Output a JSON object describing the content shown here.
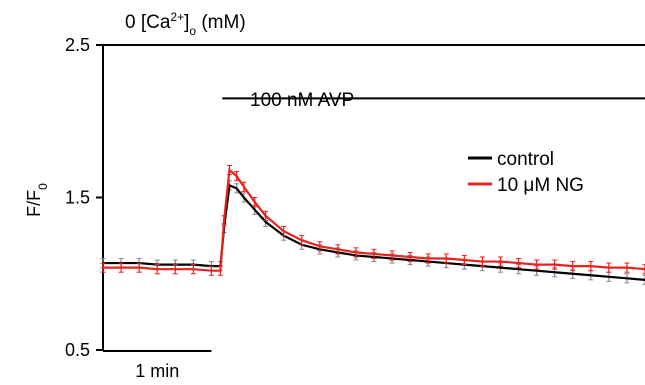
{
  "chart_data": {
    "type": "line",
    "title": "",
    "xlabel": "",
    "ylabel": {
      "main": "F/F",
      "sub": "0"
    },
    "ylim": [
      0.5,
      2.5
    ],
    "xlim": [
      0,
      15
    ],
    "y_ticks": [
      "0.5",
      "1.5",
      "2.5"
    ],
    "x_scalebar": {
      "label": "1 min",
      "length": 3.0
    },
    "grid": false,
    "legend_position": "top-right",
    "annotations": [
      {
        "id": "calcium",
        "prefix": "0 [Ca",
        "sup": "2+",
        "close": "]",
        "sub": "o",
        "suffix": " (mM)",
        "x_start": 0.0,
        "x_end": 15.0,
        "bar_y": 2.5
      },
      {
        "id": "avp",
        "text": "100 nM AVP",
        "x_start": 3.3,
        "x_end": 15.0,
        "bar_y": 2.15
      }
    ],
    "series": [
      {
        "name": "control",
        "color": "#000000",
        "error_color": "#888888",
        "x": [
          0,
          0.5,
          1.0,
          1.5,
          2.0,
          2.5,
          3.0,
          3.25,
          3.35,
          3.5,
          3.7,
          3.9,
          4.2,
          4.5,
          5.0,
          5.5,
          6.0,
          6.5,
          7.0,
          7.5,
          8.0,
          8.5,
          9.0,
          9.5,
          10.0,
          10.5,
          11.0,
          11.5,
          12.0,
          12.5,
          13.0,
          13.5,
          14.0,
          14.5,
          15.0
        ],
        "values": [
          1.07,
          1.07,
          1.07,
          1.06,
          1.06,
          1.06,
          1.05,
          1.05,
          1.3,
          1.58,
          1.56,
          1.5,
          1.42,
          1.34,
          1.25,
          1.19,
          1.16,
          1.14,
          1.12,
          1.11,
          1.1,
          1.09,
          1.08,
          1.07,
          1.06,
          1.05,
          1.04,
          1.03,
          1.02,
          1.01,
          1.0,
          0.99,
          0.98,
          0.97,
          0.96
        ],
        "error": 0.03
      },
      {
        "name": "10 μM NG",
        "color": "#e8231e",
        "error_color": "#e8231e",
        "x": [
          0,
          0.5,
          1.0,
          1.5,
          2.0,
          2.5,
          3.0,
          3.25,
          3.35,
          3.5,
          3.7,
          3.9,
          4.2,
          4.5,
          5.0,
          5.5,
          6.0,
          6.5,
          7.0,
          7.5,
          8.0,
          8.5,
          9.0,
          9.5,
          10.0,
          10.5,
          11.0,
          11.5,
          12.0,
          12.5,
          13.0,
          13.5,
          14.0,
          14.5,
          15.0
        ],
        "values": [
          1.04,
          1.04,
          1.04,
          1.03,
          1.03,
          1.03,
          1.02,
          1.02,
          1.35,
          1.68,
          1.64,
          1.57,
          1.47,
          1.38,
          1.28,
          1.22,
          1.18,
          1.16,
          1.14,
          1.13,
          1.12,
          1.11,
          1.1,
          1.1,
          1.09,
          1.08,
          1.08,
          1.07,
          1.06,
          1.06,
          1.05,
          1.05,
          1.04,
          1.04,
          1.03
        ],
        "error": 0.03
      }
    ]
  }
}
